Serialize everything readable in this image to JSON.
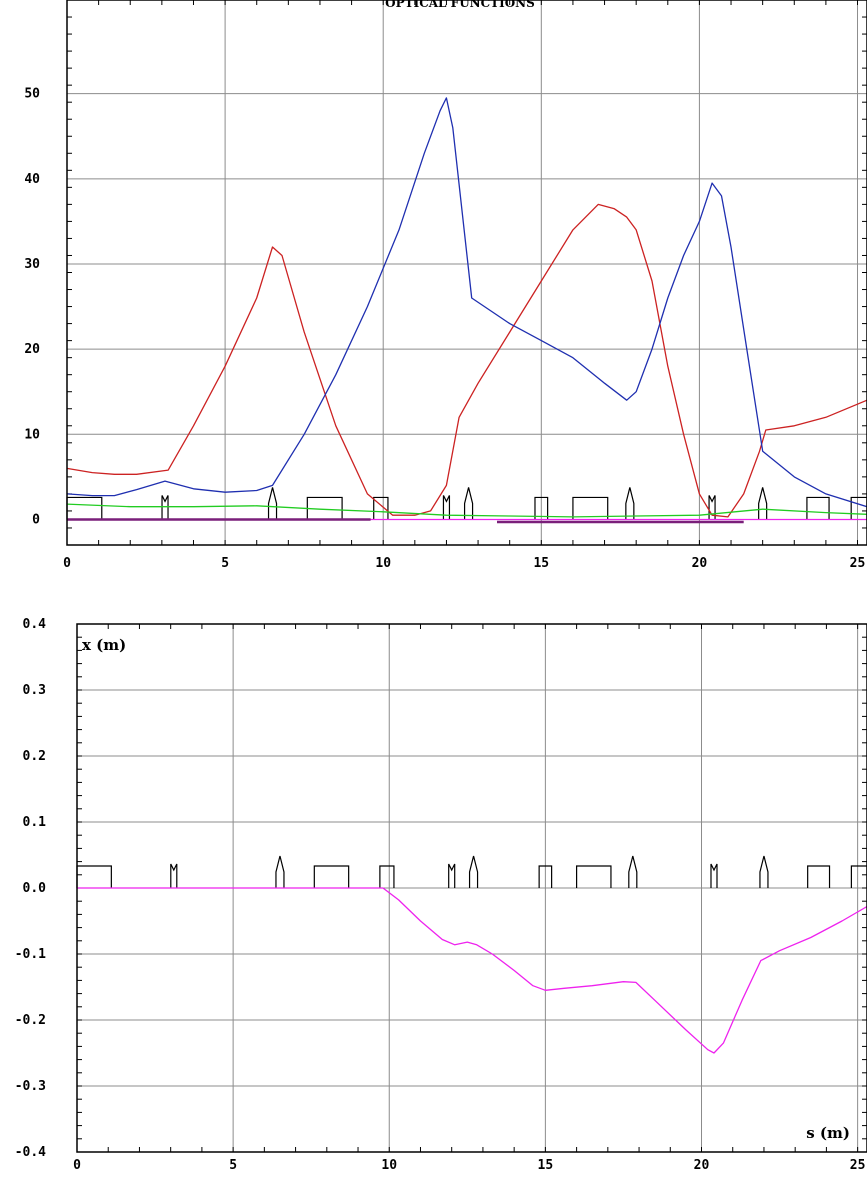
{
  "chart_data": [
    {
      "type": "line",
      "title": "OPTICAL FUNCTIONS",
      "xlabel": "",
      "ylabel": "",
      "xlim": [
        0,
        25.3
      ],
      "ylim": [
        -3,
        61
      ],
      "x_ticks": [
        0,
        5,
        10,
        15,
        20,
        25
      ],
      "y_ticks": [
        0,
        10,
        20,
        30,
        40,
        50
      ],
      "grid": true,
      "colors": {
        "red": "#cc2222",
        "blue": "#1f2fb0",
        "green": "#22cc22",
        "magenta": "#ee22ee",
        "purple": "#7a1f7a",
        "frame": "#000000",
        "grid": "#888888"
      },
      "series": [
        {
          "color": "#cc2222",
          "x": [
            0,
            0.8,
            1.5,
            2.2,
            3.2,
            4.0,
            5.0,
            6.0,
            6.5,
            6.8,
            7.5,
            8.5,
            9.5,
            10.3,
            11.0,
            11.5,
            12.0,
            12.4,
            13.0,
            14.0,
            15.0,
            16.0,
            16.8,
            17.3,
            17.7,
            18.0,
            18.5,
            19.0,
            19.5,
            20.0,
            20.4,
            20.9,
            21.4,
            21.9,
            22.1,
            23.0,
            24.0,
            25.3
          ],
          "y": [
            6,
            5.5,
            5.3,
            5.3,
            5.8,
            11,
            18,
            26,
            32,
            31,
            22,
            11,
            3,
            0.5,
            0.5,
            1,
            4,
            12,
            16,
            22,
            28,
            34,
            37,
            36.5,
            35.5,
            34,
            28,
            18,
            10,
            3,
            0.5,
            0.3,
            3,
            8,
            10.5,
            11,
            12,
            14
          ]
        },
        {
          "color": "#1f2fb0",
          "x": [
            0,
            0.8,
            1.5,
            2.2,
            3.1,
            4.0,
            5.0,
            6.0,
            6.5,
            7.5,
            8.5,
            9.5,
            10.5,
            11.3,
            11.8,
            12.0,
            12.2,
            12.8,
            14.0,
            15.0,
            16.0,
            17.0,
            17.7,
            18.0,
            18.5,
            19.0,
            19.5,
            20.0,
            20.4,
            20.7,
            21.0,
            21.5,
            22.0,
            23.0,
            24.0,
            25.3
          ],
          "y": [
            3,
            2.8,
            2.8,
            3.5,
            4.5,
            3.6,
            3.2,
            3.4,
            4,
            10,
            17,
            25,
            34,
            43,
            48,
            49.5,
            46,
            26,
            23,
            21,
            19,
            16,
            14,
            15,
            20,
            26,
            31,
            35,
            39.5,
            38,
            32,
            20,
            8,
            5,
            3,
            1.5
          ]
        },
        {
          "color": "#22cc22",
          "x": [
            0,
            2,
            4,
            6,
            8,
            10,
            12,
            14,
            16,
            18,
            20,
            22,
            24,
            25.3
          ],
          "y": [
            1.8,
            1.5,
            1.5,
            1.6,
            1.2,
            0.9,
            0.5,
            0.4,
            0.3,
            0.4,
            0.5,
            1.2,
            0.8,
            0.6
          ]
        },
        {
          "color": "#ee22ee",
          "x": [
            0,
            25.3
          ],
          "y": [
            0,
            0
          ]
        },
        {
          "color": "#7a1f7a",
          "x": [
            0,
            9.6
          ],
          "y": [
            0,
            0
          ]
        },
        {
          "color": "#7a1f7a",
          "x": [
            13.6,
            21.4
          ],
          "y": [
            -0.3,
            -0.3
          ]
        }
      ],
      "lattice": [
        {
          "kind": "bend",
          "s": 0,
          "len": 1.1
        },
        {
          "kind": "quad",
          "s": 3.1
        },
        {
          "kind": "sext",
          "s": 6.5
        },
        {
          "kind": "bend",
          "s": 7.6,
          "len": 1.1
        },
        {
          "kind": "bend",
          "s": 9.7,
          "len": 0.45
        },
        {
          "kind": "quad",
          "s": 12.0
        },
        {
          "kind": "sext",
          "s": 12.7
        },
        {
          "kind": "bend",
          "s": 14.8,
          "len": 0.4
        },
        {
          "kind": "bend",
          "s": 16.0,
          "len": 1.1
        },
        {
          "kind": "sext",
          "s": 17.8
        },
        {
          "kind": "quad",
          "s": 20.4
        },
        {
          "kind": "sext",
          "s": 22.0
        },
        {
          "kind": "bend",
          "s": 23.4,
          "len": 0.7
        },
        {
          "kind": "bend",
          "s": 24.8,
          "len": 0.5
        }
      ]
    },
    {
      "type": "line",
      "title": "",
      "xlabel": "s (m)",
      "ylabel": "x (m)",
      "xlim": [
        0,
        25.3
      ],
      "ylim": [
        -0.4,
        0.4
      ],
      "x_ticks": [
        0,
        5,
        10,
        15,
        20,
        25
      ],
      "y_ticks": [
        0.4,
        0.3,
        0.2,
        0.1,
        0.0,
        -0.1,
        -0.2,
        -0.3,
        -0.4
      ],
      "grid": true,
      "series": [
        {
          "color": "#ee22ee",
          "x": [
            0,
            9.8,
            10.3,
            11.0,
            11.7,
            12.1,
            12.5,
            12.8,
            13.3,
            14.0,
            14.6,
            15.0,
            15.6,
            16.5,
            17.5,
            17.9,
            18.5,
            19.5,
            20.2,
            20.4,
            20.7,
            21.3,
            21.9,
            22.5,
            23.5,
            24.5,
            25.3
          ],
          "y": [
            0,
            0,
            -0.018,
            -0.05,
            -0.078,
            -0.086,
            -0.082,
            -0.086,
            -0.1,
            -0.125,
            -0.148,
            -0.155,
            -0.152,
            -0.148,
            -0.142,
            -0.143,
            -0.17,
            -0.215,
            -0.245,
            -0.25,
            -0.235,
            -0.17,
            -0.11,
            -0.095,
            -0.075,
            -0.05,
            -0.028
          ]
        }
      ],
      "lattice": [
        {
          "kind": "bend",
          "s": 0,
          "len": 1.1
        },
        {
          "kind": "quad",
          "s": 3.1
        },
        {
          "kind": "sext",
          "s": 6.5
        },
        {
          "kind": "bend",
          "s": 7.6,
          "len": 1.1
        },
        {
          "kind": "bend",
          "s": 9.7,
          "len": 0.45
        },
        {
          "kind": "quad",
          "s": 12.0
        },
        {
          "kind": "sext",
          "s": 12.7
        },
        {
          "kind": "bend",
          "s": 14.8,
          "len": 0.4
        },
        {
          "kind": "bend",
          "s": 16.0,
          "len": 1.1
        },
        {
          "kind": "sext",
          "s": 17.8
        },
        {
          "kind": "quad",
          "s": 20.4
        },
        {
          "kind": "sext",
          "s": 22.0
        },
        {
          "kind": "bend",
          "s": 23.4,
          "len": 0.7
        },
        {
          "kind": "bend",
          "s": 24.8,
          "len": 0.5
        }
      ]
    }
  ]
}
